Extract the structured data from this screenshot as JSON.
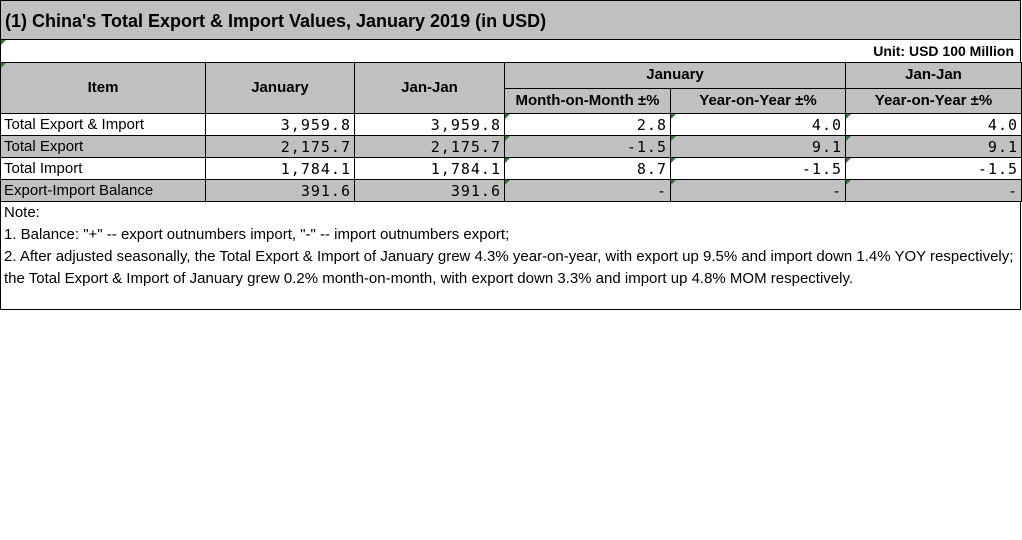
{
  "title": "(1) China's Total Export & Import Values, January 2019 (in USD)",
  "unit": "Unit: USD 100 Million",
  "headers": {
    "item": "Item",
    "january": "January",
    "jan_jan": "Jan-Jan",
    "group_january": "January",
    "group_jan_jan": "Jan-Jan",
    "mom": "Month-on-Month ±%",
    "yoy_jan": "Year-on-Year ±%",
    "yoy_janjan": "Year-on-Year ±%"
  },
  "rows": [
    {
      "item": "Total Export & Import",
      "january": "3,959.8",
      "jan_jan": "3,959.8",
      "mom": "2.8",
      "yoy_jan": "4.0",
      "yoy_janjan": "4.0"
    },
    {
      "item": "Total Export",
      "january": "2,175.7",
      "jan_jan": "2,175.7",
      "mom": "-1.5",
      "yoy_jan": "9.1",
      "yoy_janjan": "9.1"
    },
    {
      "item": "Total Import",
      "january": "1,784.1",
      "jan_jan": "1,784.1",
      "mom": "8.7",
      "yoy_jan": "-1.5",
      "yoy_janjan": "-1.5"
    },
    {
      "item": "Export-Import Balance",
      "january": "391.6",
      "jan_jan": "391.6",
      "mom": "-",
      "yoy_jan": "-",
      "yoy_janjan": "-"
    }
  ],
  "notes": {
    "heading": "Note:",
    "line1": "1. Balance: \"+\" -- export outnumbers import, \"-\" -- import outnumbers export;",
    "line2": "2. After adjusted seasonally, the Total Export & Import of January grew 4.3% year-on-year, with export up 9.5% and import down 1.4% YOY respectively; the Total Export & Import of January grew 0.2% month-on-month, with export down 3.3% and import up 4.8% MOM respectively."
  },
  "colors": {
    "header_fill": "#c0c0c0",
    "cell_marker": "#2e7d32"
  }
}
